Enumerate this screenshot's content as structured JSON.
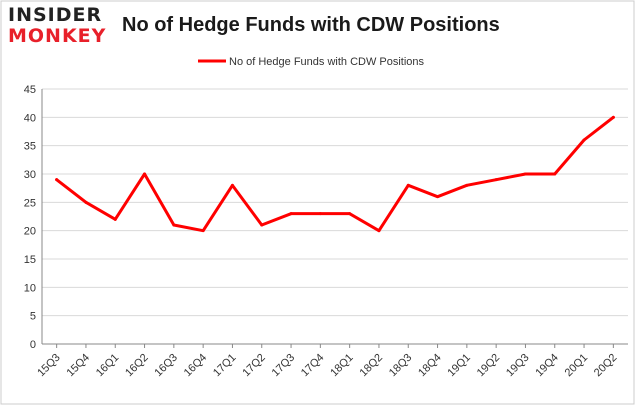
{
  "brand": {
    "logo_top": "INSIDER",
    "logo_bottom": "MONKEY",
    "accent_color": "#e8202a"
  },
  "chart_data": {
    "type": "line",
    "title": "No of Hedge Funds with CDW Positions",
    "xlabel": "",
    "ylabel": "",
    "categories": [
      "15Q3",
      "15Q4",
      "16Q1",
      "16Q2",
      "16Q3",
      "16Q4",
      "17Q1",
      "17Q2",
      "17Q3",
      "17Q4",
      "18Q1",
      "18Q2",
      "18Q3",
      "18Q4",
      "19Q1",
      "19Q2",
      "19Q3",
      "19Q4",
      "20Q1",
      "20Q2"
    ],
    "series": [
      {
        "name": "No of Hedge Funds with CDW Positions",
        "color": "#ff0000",
        "values": [
          29,
          25,
          22,
          30,
          21,
          20,
          28,
          21,
          23,
          23,
          23,
          20,
          28,
          26,
          28,
          29,
          30,
          30,
          36,
          40
        ]
      }
    ],
    "ylim": [
      0,
      45
    ],
    "yticks": [
      0,
      5,
      10,
      15,
      20,
      25,
      30,
      35,
      40,
      45
    ],
    "grid": "horizontal",
    "legend": "top-center"
  }
}
